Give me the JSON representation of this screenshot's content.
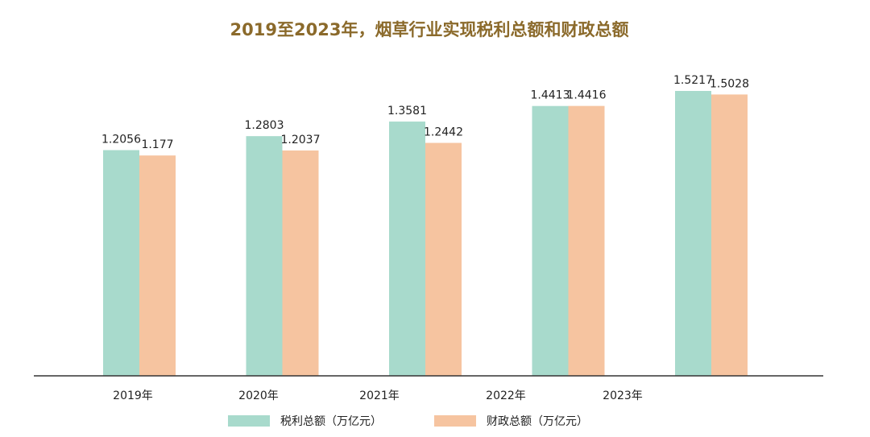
{
  "chart_data": {
    "type": "bar",
    "title": "2019至2023年，烟草行业实现税利总额和财政总额",
    "categories": [
      "2019年",
      "2020年",
      "2021年",
      "2022年",
      "2023年"
    ],
    "series": [
      {
        "name": "税利总额（万亿元）",
        "values": [
          1.2056,
          1.2803,
          1.3581,
          1.4413,
          1.5217
        ],
        "labels": [
          "1.2056",
          "1.2803",
          "1.3581",
          "1.4413",
          "1.5217"
        ]
      },
      {
        "name": "财政总额（万亿元）",
        "values": [
          1.177,
          1.2037,
          1.2442,
          1.4416,
          1.5028
        ],
        "labels": [
          "1.177",
          "1.2037",
          "1.2442",
          "1.4416",
          "1.5028"
        ]
      }
    ],
    "ylim": [
      0,
      1.55
    ],
    "grid": false,
    "legend_position": "bottom"
  },
  "colors": {
    "title": "#8B6A2B",
    "series": [
      "#A8DACC",
      "#F6C4A0"
    ],
    "axis": "#333333",
    "label": "#222222"
  }
}
